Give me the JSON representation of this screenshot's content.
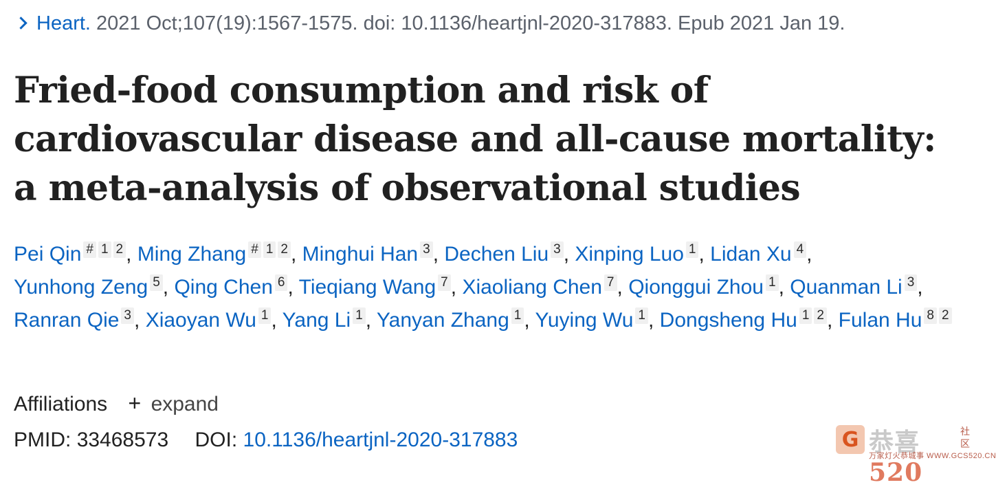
{
  "citation": {
    "journal": "Heart.",
    "details": "2021 Oct;107(19):1567-1575. doi: 10.1136/heartjnl-2020-317883. Epub 2021 Jan 19."
  },
  "title": "Fried-food consumption and risk of cardiovascular disease and all-cause mortality: a meta-analysis of observational studies",
  "authors": [
    {
      "name": "Pei Qin",
      "sups": [
        "#",
        "1",
        "2"
      ]
    },
    {
      "name": "Ming Zhang",
      "sups": [
        "#",
        "1",
        "2"
      ]
    },
    {
      "name": "Minghui Han",
      "sups": [
        "3"
      ]
    },
    {
      "name": "Dechen Liu",
      "sups": [
        "3"
      ]
    },
    {
      "name": "Xinping Luo",
      "sups": [
        "1"
      ]
    },
    {
      "name": "Lidan Xu",
      "sups": [
        "4"
      ]
    },
    {
      "name": "Yunhong Zeng",
      "sups": [
        "5"
      ]
    },
    {
      "name": "Qing Chen",
      "sups": [
        "6"
      ]
    },
    {
      "name": "Tieqiang Wang",
      "sups": [
        "7"
      ]
    },
    {
      "name": "Xiaoliang Chen",
      "sups": [
        "7"
      ]
    },
    {
      "name": "Qionggui Zhou",
      "sups": [
        "1"
      ]
    },
    {
      "name": "Quanman Li",
      "sups": [
        "3"
      ]
    },
    {
      "name": "Ranran Qie",
      "sups": [
        "3"
      ]
    },
    {
      "name": "Xiaoyan Wu",
      "sups": [
        "1"
      ]
    },
    {
      "name": "Yang Li",
      "sups": [
        "1"
      ]
    },
    {
      "name": "Yanyan Zhang",
      "sups": [
        "1"
      ]
    },
    {
      "name": "Yuying Wu",
      "sups": [
        "1"
      ]
    },
    {
      "name": "Dongsheng Hu",
      "sups": [
        "1",
        "2"
      ]
    },
    {
      "name": "Fulan Hu",
      "sups": [
        "8",
        "2"
      ]
    }
  ],
  "affiliations": {
    "label": "Affiliations",
    "toggle_icon": "plus-icon",
    "toggle_label": "expand"
  },
  "identifiers": {
    "pmid_label": "PMID:",
    "pmid": "33468573",
    "doi_label": "DOI:",
    "doi": "10.1136/heartjnl-2020-317883"
  },
  "watermark": {
    "icon_glyph": "G",
    "text": "恭喜",
    "number": "520",
    "side": "社区",
    "small": "万家灯火恭城事 WWW.GCS520.CN"
  },
  "colors": {
    "link": "#0b64c2",
    "text": "#212121",
    "muted": "#5b616b"
  }
}
